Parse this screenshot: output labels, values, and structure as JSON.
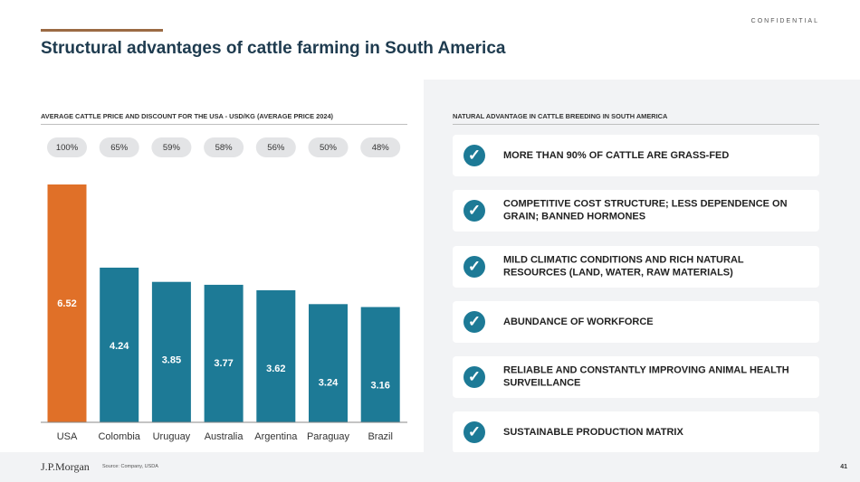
{
  "header": {
    "confidential": "CONFIDENTIAL",
    "title": "Structural advantages of cattle farming in South America"
  },
  "left_section": {
    "title": "AVERAGE CATTLE PRICE AND DISCOUNT FOR THE USA - USD/KG (AVERAGE PRICE 2024)"
  },
  "right_section": {
    "title": "NATURAL ADVANTAGE IN CATTLE BREEDING IN SOUTH AMERICA",
    "items": [
      {
        "line1": "MORE THAN 90% OF CATTLE ARE GRASS-FED",
        "line2": ""
      },
      {
        "line1": "COMPETITIVE COST STRUCTURE; LESS DEPENDENCE ON",
        "line2": "GRAIN; BANNED HORMONES"
      },
      {
        "line1": "MILD CLIMATIC CONDITIONS AND RICH NATURAL",
        "line2": "RESOURCES (LAND, WATER, RAW MATERIALS)"
      },
      {
        "line1": "ABUNDANCE OF WORKFORCE",
        "line2": ""
      },
      {
        "line1": "RELIABLE AND CONSTANTLY IMPROVING ANIMAL HEALTH",
        "line2": "SURVEILLANCE"
      },
      {
        "line1": "SUSTAINABLE PRODUCTION MATRIX",
        "line2": ""
      }
    ],
    "check_icon": "check-icon",
    "check_glyph": "✓"
  },
  "chart_data": {
    "type": "bar",
    "title": "AVERAGE CATTLE PRICE AND DISCOUNT FOR THE USA - USD/KG (AVERAGE PRICE 2024)",
    "categories": [
      "USA",
      "Colombia",
      "Uruguay",
      "Australia",
      "Argentina",
      "Paraguay",
      "Brazil"
    ],
    "values": [
      6.52,
      4.24,
      3.85,
      3.77,
      3.62,
      3.24,
      3.16
    ],
    "value_labels": [
      "6.52",
      "4.24",
      "3.85",
      "3.77",
      "3.62",
      "3.24",
      "3.16"
    ],
    "percent_labels": [
      "100%",
      "65%",
      "59%",
      "58%",
      "56%",
      "50%",
      "48%"
    ],
    "unit": "USD/kg",
    "xlabel": "",
    "ylabel": "",
    "ylim": [
      0,
      6.52
    ],
    "colors": {
      "highlight": "#e07028",
      "default": "#1d7a96",
      "pill": "#e3e4e6"
    }
  },
  "footer": {
    "logo": "J.P.Morgan",
    "source": "Source: Company, USDA",
    "page_number": "41"
  }
}
